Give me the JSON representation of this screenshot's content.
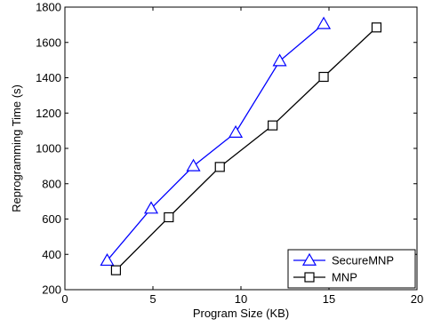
{
  "chart_data": {
    "type": "line",
    "title": "",
    "xlabel": "Program Size (KB)",
    "ylabel": "Reprogramming Time (s)",
    "xlim": [
      0,
      20
    ],
    "ylim": [
      200,
      1800
    ],
    "xticks": [
      0,
      5,
      10,
      15,
      20
    ],
    "yticks": [
      200,
      400,
      600,
      800,
      1000,
      1200,
      1400,
      1600,
      1800
    ],
    "grid": false,
    "legend_position": "bottom-right",
    "series": [
      {
        "name": "SecureMNP",
        "color": "#0000ff",
        "marker": "triangle",
        "x": [
          2.4,
          4.9,
          7.3,
          9.7,
          12.2,
          14.7
        ],
        "y": [
          365,
          660,
          900,
          1090,
          1495,
          1705
        ]
      },
      {
        "name": "MNP",
        "color": "#000000",
        "marker": "square",
        "x": [
          2.9,
          5.9,
          8.8,
          11.8,
          14.7,
          17.7
        ],
        "y": [
          310,
          610,
          895,
          1130,
          1405,
          1685
        ]
      }
    ]
  }
}
